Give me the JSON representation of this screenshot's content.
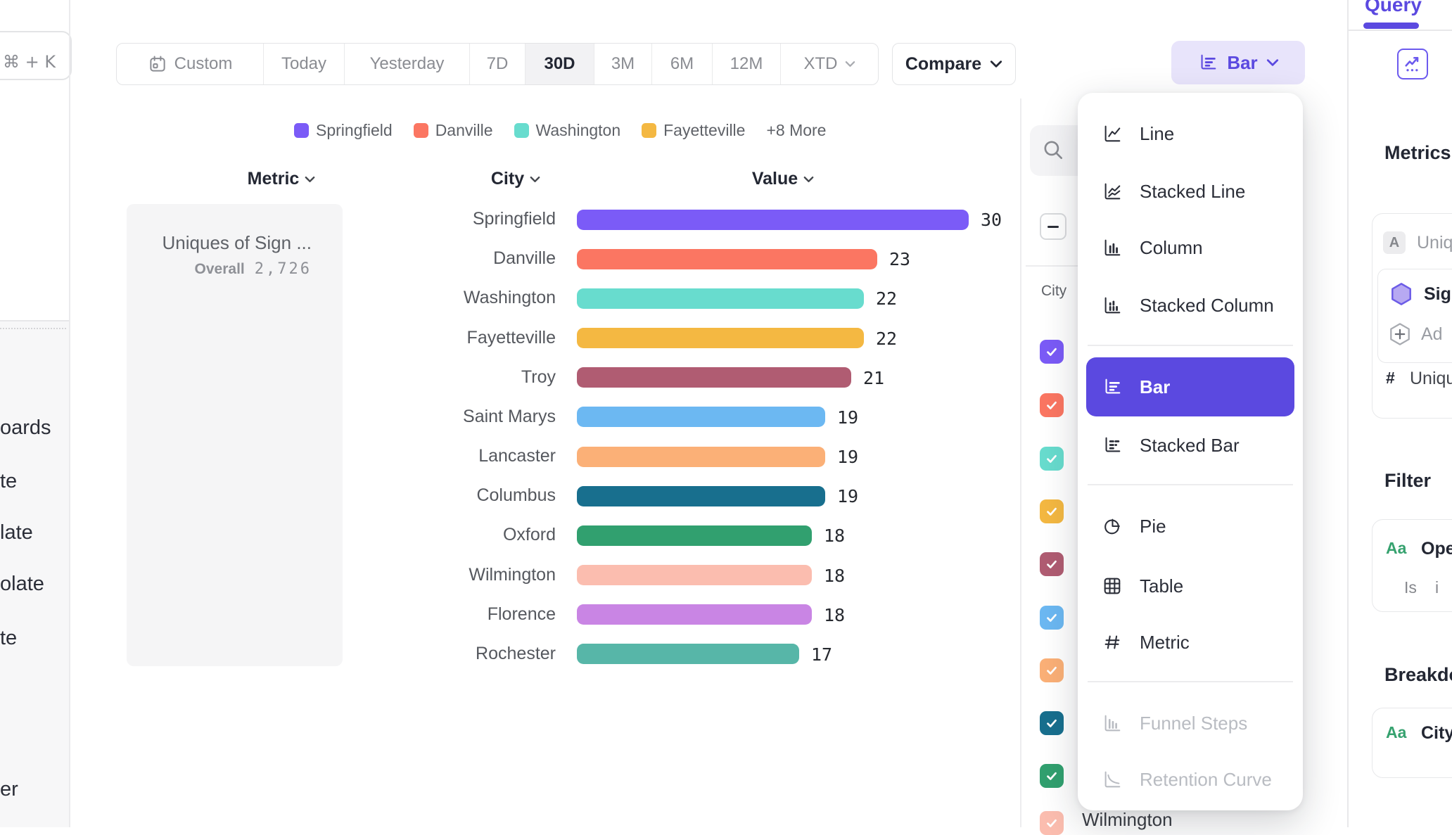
{
  "app": {
    "query_tab": "Query",
    "shortcut_hint": "⌘ + K"
  },
  "sidebar_fragments": [
    "oards",
    "te",
    "late",
    "olate",
    "te",
    "er"
  ],
  "toolbar": {
    "ranges": [
      "Custom",
      "Today",
      "Yesterday",
      "7D",
      "30D",
      "3M",
      "6M",
      "12M",
      "XTD"
    ],
    "active_range": "30D",
    "compare_label": "Compare",
    "chart_type_label": "Bar"
  },
  "legend": {
    "items": [
      {
        "label": "Springfield",
        "color": "#7b5bf7"
      },
      {
        "label": "Danville",
        "color": "#fb7662"
      },
      {
        "label": "Washington",
        "color": "#68dcce"
      },
      {
        "label": "Fayetteville",
        "color": "#f4b842"
      }
    ],
    "more_label": "+8 More"
  },
  "columns": {
    "metric": "Metric",
    "city": "City",
    "value": "Value"
  },
  "metric_card": {
    "title": "Uniques of Sign ...",
    "overall_label": "Overall",
    "overall_value": "2,726"
  },
  "chart_data": {
    "type": "bar",
    "orientation": "horizontal",
    "title": "Uniques of Sign ...",
    "overall": "2,726",
    "categories": [
      "Springfield",
      "Danville",
      "Washington",
      "Fayetteville",
      "Troy",
      "Saint Marys",
      "Lancaster",
      "Columbus",
      "Oxford",
      "Wilmington",
      "Florence",
      "Rochester"
    ],
    "values": [
      30,
      23,
      22,
      22,
      21,
      19,
      19,
      19,
      18,
      18,
      18,
      17
    ],
    "colors": [
      "#7b5bf7",
      "#fb7662",
      "#68dcce",
      "#f4b842",
      "#b05c72",
      "#6cb8f2",
      "#fbb077",
      "#186f8e",
      "#31a06f",
      "#fbbdaf",
      "#c985e4",
      "#57b6a8"
    ],
    "xlim": [
      0,
      30
    ],
    "grid": false,
    "legend_position": "top"
  },
  "city_panel": {
    "column_label": "City",
    "partial_row_label": "Wilmington",
    "checked_count_visible": 10
  },
  "menu": {
    "groups": [
      {
        "items": [
          {
            "label": "Line",
            "icon": "line"
          },
          {
            "label": "Stacked Line",
            "icon": "stacked-line"
          },
          {
            "label": "Column",
            "icon": "column"
          },
          {
            "label": "Stacked Column",
            "icon": "stacked-column"
          }
        ]
      },
      {
        "items": [
          {
            "label": "Bar",
            "icon": "bar",
            "selected": true
          },
          {
            "label": "Stacked Bar",
            "icon": "stacked-bar"
          }
        ]
      },
      {
        "items": [
          {
            "label": "Pie",
            "icon": "pie"
          },
          {
            "label": "Table",
            "icon": "table"
          },
          {
            "label": "Metric",
            "icon": "metric"
          }
        ]
      },
      {
        "items": [
          {
            "label": "Funnel Steps",
            "icon": "funnel",
            "disabled": true
          },
          {
            "label": "Retention Curve",
            "icon": "retention",
            "disabled": true
          }
        ]
      }
    ]
  },
  "query_panel": {
    "metrics_heading": "Metrics",
    "event_row": {
      "badge": "A",
      "name": "Uniq"
    },
    "sig_row": {
      "name": "Sig"
    },
    "add_row": {
      "name": "Ad"
    },
    "count_row": {
      "symbol": "#",
      "name": "Uniqu"
    },
    "filter_heading": "Filter",
    "filter_row": {
      "badge": "Aa",
      "name": "Ope",
      "operator": "Is",
      "value": "i"
    },
    "breakdown_heading": "Breakdo",
    "breakdown_row": {
      "badge": "Aa",
      "name": "City"
    }
  },
  "colors": {
    "accent": "#5b49e0",
    "accent_light": "#e8e4fb",
    "text_dark": "#232733",
    "text_gray": "#85878c"
  }
}
